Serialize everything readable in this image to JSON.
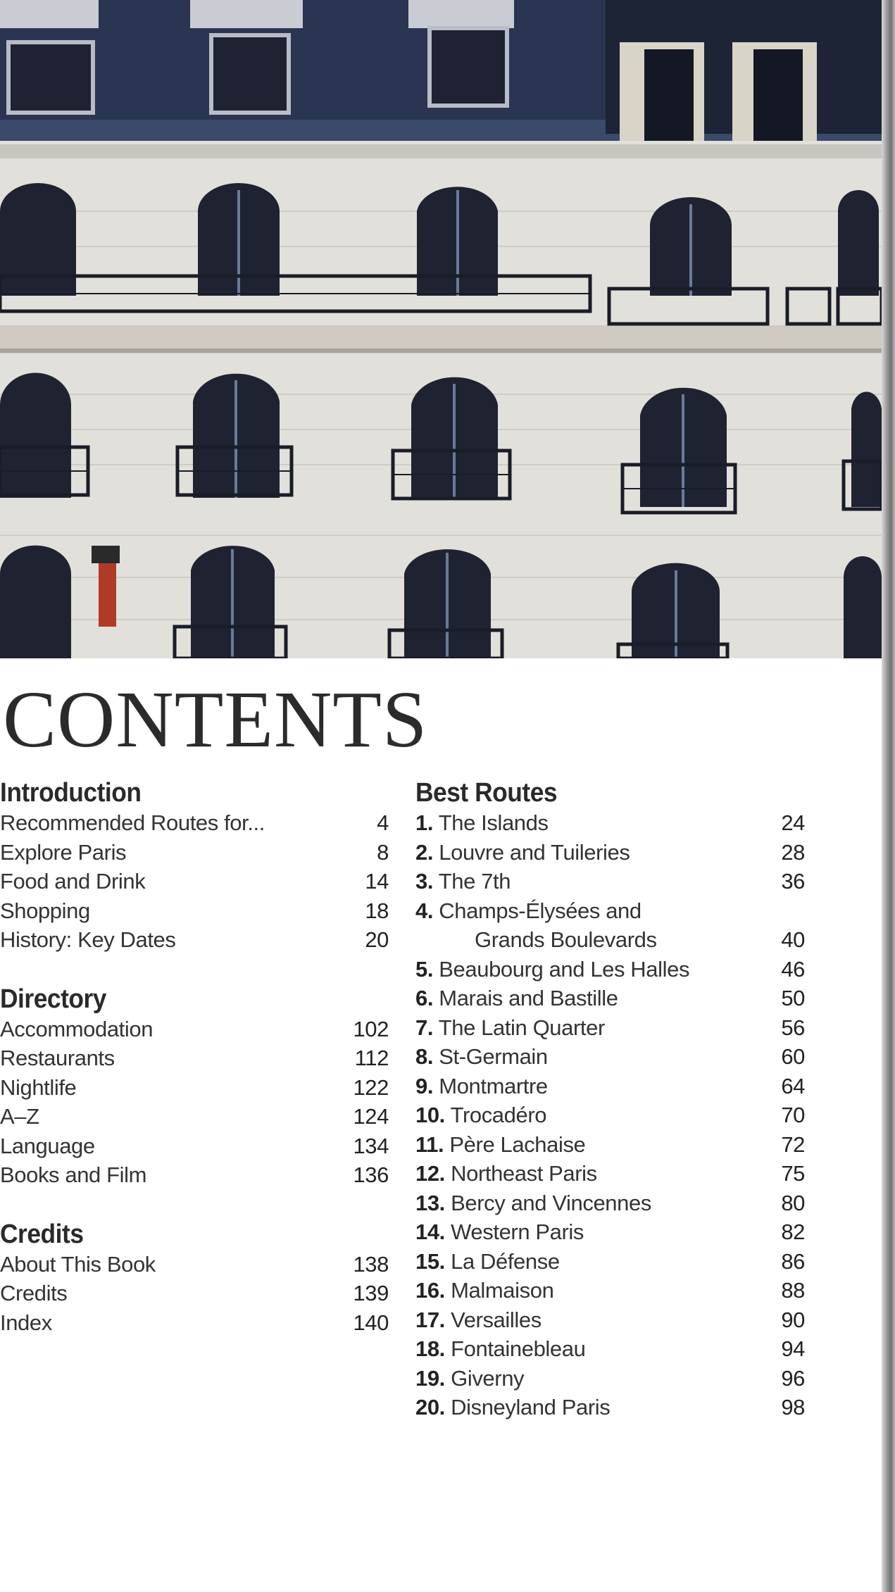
{
  "title": "CONTENTS",
  "left_sections": [
    {
      "heading": "Introduction",
      "items": [
        {
          "title": "Recommended Routes for...",
          "page": "4"
        },
        {
          "title": "Explore Paris",
          "page": "8"
        },
        {
          "title": "Food and Drink",
          "page": "14"
        },
        {
          "title": "Shopping",
          "page": "18"
        },
        {
          "title": "History: Key Dates",
          "page": "20"
        }
      ]
    },
    {
      "heading": "Directory",
      "items": [
        {
          "title": "Accommodation",
          "page": "102"
        },
        {
          "title": "Restaurants",
          "page": "112"
        },
        {
          "title": "Nightlife",
          "page": "122"
        },
        {
          "title": "A–Z",
          "page": "124"
        },
        {
          "title": "Language",
          "page": "134"
        },
        {
          "title": "Books and Film",
          "page": "136"
        }
      ]
    },
    {
      "heading": "Credits",
      "items": [
        {
          "title": "About This Book",
          "page": "138"
        },
        {
          "title": "Credits",
          "page": "139"
        },
        {
          "title": "Index",
          "page": "140"
        }
      ]
    }
  ],
  "best_routes": {
    "heading": "Best Routes",
    "items": [
      {
        "num": "1.",
        "title": "The Islands",
        "page": "24"
      },
      {
        "num": "2.",
        "title": "Louvre and Tuileries",
        "page": "28"
      },
      {
        "num": "3.",
        "title": "The 7th",
        "page": "36"
      },
      {
        "num": "4.",
        "title": "Champs-Élysées and",
        "title_line2": "Grands Boulevards",
        "page": "40"
      },
      {
        "num": "5.",
        "title": "Beaubourg and Les Halles",
        "page": "46"
      },
      {
        "num": "6.",
        "title": "Marais and Bastille",
        "page": "50"
      },
      {
        "num": "7.",
        "title": "The Latin Quarter",
        "page": "56"
      },
      {
        "num": "8.",
        "title": "St-Germain",
        "page": "60"
      },
      {
        "num": "9.",
        "title": "Montmartre",
        "page": "64"
      },
      {
        "num": "10.",
        "title": "Trocadéro",
        "page": "70"
      },
      {
        "num": "11.",
        "title": "Père Lachaise",
        "page": "72"
      },
      {
        "num": "12.",
        "title": "Northeast Paris",
        "page": "75"
      },
      {
        "num": "13.",
        "title": "Bercy and Vincennes",
        "page": "80"
      },
      {
        "num": "14.",
        "title": "Western Paris",
        "page": "82"
      },
      {
        "num": "15.",
        "title": "La Défense",
        "page": "86"
      },
      {
        "num": "16.",
        "title": "Malmaison",
        "page": "88"
      },
      {
        "num": "17.",
        "title": "Versailles",
        "page": "90"
      },
      {
        "num": "18.",
        "title": "Fontainebleau",
        "page": "94"
      },
      {
        "num": "19.",
        "title": "Giverny",
        "page": "96"
      },
      {
        "num": "20.",
        "title": "Disneyland Paris",
        "page": "98"
      }
    ]
  },
  "colors": {
    "text": "#262626",
    "roof": "#2b3552",
    "stone": "#e4e2dc",
    "window": "#1f2230"
  }
}
